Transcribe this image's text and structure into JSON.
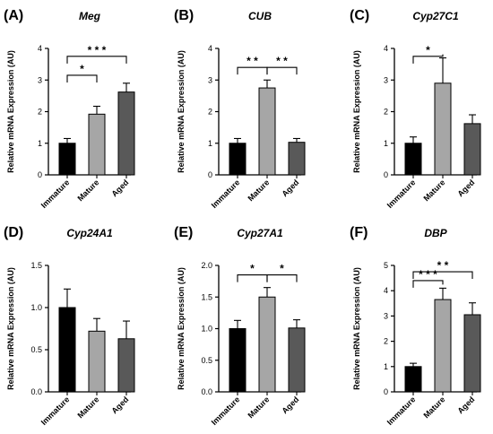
{
  "chart_data": [
    {
      "letter": "(A)",
      "type": "bar",
      "title": "Meg",
      "ylabel": "Relative mRNA Expression (AU)",
      "categories": [
        "Immature",
        "Mature",
        "Aged"
      ],
      "values": [
        1.0,
        1.92,
        2.62
      ],
      "errors": [
        0.15,
        0.25,
        0.28
      ],
      "ylim": [
        0,
        4
      ],
      "yticks": [
        "0",
        "1",
        "2",
        "3",
        "4"
      ],
      "significance": [
        {
          "from": 0,
          "to": 1,
          "label": "*",
          "y": 3.15
        },
        {
          "from": 0,
          "to": 2,
          "label": "* * *",
          "y": 3.75
        }
      ]
    },
    {
      "letter": "(B)",
      "type": "bar",
      "title": "CUB",
      "ylabel": "Relative mRNA Expression (AU)",
      "categories": [
        "Immature",
        "Mature",
        "Aged"
      ],
      "values": [
        1.0,
        2.75,
        1.03
      ],
      "errors": [
        0.15,
        0.25,
        0.12
      ],
      "ylim": [
        0,
        4
      ],
      "yticks": [
        "0",
        "1",
        "2",
        "3",
        "4"
      ],
      "significance": [
        {
          "from": 0,
          "to": 1,
          "label": "* *",
          "y": 3.4
        },
        {
          "from": 1,
          "to": 2,
          "label": "* *",
          "y": 3.4
        }
      ]
    },
    {
      "letter": "(C)",
      "type": "bar",
      "title": "Cyp27C1",
      "ylabel": "Relative mRNA Expression (AU)",
      "categories": [
        "Immature",
        "Mature",
        "Aged"
      ],
      "values": [
        1.0,
        2.9,
        1.62
      ],
      "errors": [
        0.2,
        0.8,
        0.28
      ],
      "ylim": [
        0,
        4
      ],
      "yticks": [
        "0",
        "1",
        "2",
        "3",
        "4"
      ],
      "significance": [
        {
          "from": 0,
          "to": 1,
          "label": "*",
          "y": 3.75
        }
      ]
    },
    {
      "letter": "(D)",
      "type": "bar",
      "title": "Cyp24A1",
      "ylabel": "Relative mRNA Expression (AU)",
      "categories": [
        "Immature",
        "Mature",
        "Aged"
      ],
      "values": [
        1.0,
        0.72,
        0.63
      ],
      "errors": [
        0.22,
        0.15,
        0.21
      ],
      "ylim": [
        0,
        1.5
      ],
      "yticks": [
        "0.0",
        "0.5",
        "1.0",
        "1.5"
      ],
      "significance": []
    },
    {
      "letter": "(E)",
      "type": "bar",
      "title": "Cyp27A1",
      "ylabel": "Relative mRNA Expression (AU)",
      "categories": [
        "Immature",
        "Mature",
        "Aged"
      ],
      "values": [
        1.0,
        1.5,
        1.01
      ],
      "errors": [
        0.13,
        0.15,
        0.13
      ],
      "ylim": [
        0,
        2.0
      ],
      "yticks": [
        "0.0",
        "0.5",
        "1.0",
        "1.5",
        "2.0"
      ],
      "significance": [
        {
          "from": 0,
          "to": 1,
          "label": "*",
          "y": 1.85
        },
        {
          "from": 1,
          "to": 2,
          "label": "*",
          "y": 1.85
        }
      ]
    },
    {
      "letter": "(F)",
      "type": "bar",
      "title": "DBP",
      "ylabel": "Relative mRNA Expression (AU)",
      "categories": [
        "Immature",
        "Mature",
        "Aged"
      ],
      "values": [
        1.0,
        3.65,
        3.05
      ],
      "errors": [
        0.13,
        0.45,
        0.47
      ],
      "ylim": [
        0,
        5
      ],
      "yticks": [
        "0",
        "1",
        "2",
        "3",
        "4",
        "5"
      ],
      "significance": [
        {
          "from": 0,
          "to": 1,
          "label": "* * *",
          "y": 4.4
        },
        {
          "from": 0,
          "to": 2,
          "label": "* *",
          "y": 4.75
        }
      ]
    }
  ],
  "bar_colors": [
    "#000000",
    "#a6a6a6",
    "#595959"
  ]
}
